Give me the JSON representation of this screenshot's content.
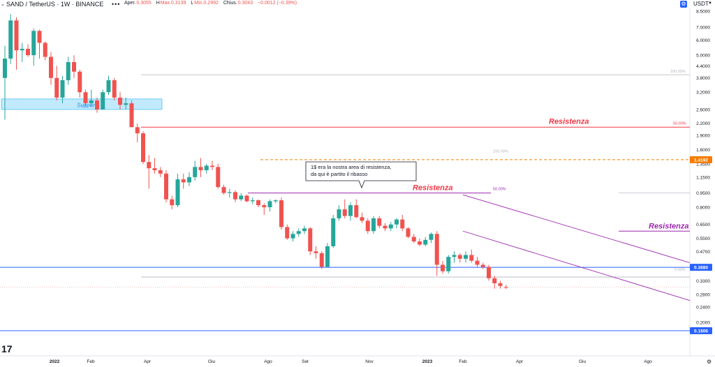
{
  "header": {
    "collapse_icon": "chevron-down",
    "symbol": "SAND / TetherUS · 1W · BINANCE",
    "ohlc": [
      {
        "label": "Aper.",
        "value": "0.3055"
      },
      {
        "label": "H",
        "value": "Max.0.3139"
      },
      {
        "label": "L",
        "value": "Min.0.2992"
      },
      {
        "label": "Chius.",
        "value": "0.3043"
      },
      {
        "label": "",
        "value": "−0.0012 (−0.39%)"
      }
    ],
    "currency": "USDT",
    "settings_icon": "gear-icon"
  },
  "colors": {
    "up": "#26a69a",
    "down": "#ef5350",
    "support": "#b3e5fc",
    "resistance_red": "#f23645",
    "purple": "#9c27b0",
    "blue_line": "#2962ff"
  },
  "chart_data": {
    "type": "candlestick",
    "title": "SAND / TetherUS · 1W · BINANCE",
    "y_scale": "log",
    "ylim": [
      0.19,
      8.5
    ],
    "y_ticks": [
      "8.5000",
      "7.0000",
      "6.0000",
      "5.0000",
      "4.4000",
      "3.8000",
      "3.2000",
      "2.6000",
      "2.2000",
      "1.9000",
      "1.6000",
      "1.3500",
      "1.1500",
      "0.9500",
      "0.8000",
      "0.6500",
      "0.5500",
      "0.4700",
      "0.3950",
      "0.3300",
      "0.2800",
      "0.2400",
      "0.2000"
    ],
    "x_ticks": [
      "2022",
      "Feb",
      "Apr",
      "Giu",
      "Ago",
      "Set",
      "Nov",
      "2023",
      "Feb",
      "Apr",
      "Giu",
      "Ago"
    ],
    "price_labels": [
      {
        "value": "1.4192",
        "color": "#f57c00"
      },
      {
        "value": "0.3880",
        "color": "#2962ff"
      },
      {
        "value": "0.1806",
        "color": "#2962ff"
      }
    ],
    "candles": [
      [
        3.8,
        5.6,
        2.3,
        4.8
      ],
      [
        4.8,
        8.2,
        4.5,
        7.6
      ],
      [
        7.6,
        7.9,
        4.2,
        5.3
      ],
      [
        5.3,
        5.8,
        4.6,
        5.4
      ],
      [
        5.4,
        5.7,
        4.9,
        5.0
      ],
      [
        5.0,
        6.9,
        4.4,
        6.7
      ],
      [
        6.7,
        6.8,
        4.8,
        5.8
      ],
      [
        5.8,
        5.9,
        4.7,
        4.9
      ],
      [
        4.9,
        5.2,
        3.5,
        3.8
      ],
      [
        3.8,
        4.4,
        2.9,
        3.0
      ],
      [
        3.0,
        3.9,
        2.8,
        3.7
      ],
      [
        3.7,
        4.9,
        3.5,
        4.6
      ],
      [
        4.6,
        5.0,
        3.8,
        4.1
      ],
      [
        4.1,
        4.2,
        3.0,
        3.2
      ],
      [
        3.2,
        3.3,
        2.7,
        2.8
      ],
      [
        2.8,
        3.3,
        2.7,
        2.9
      ],
      [
        2.9,
        3.0,
        2.5,
        2.6
      ],
      [
        2.6,
        3.3,
        2.6,
        3.2
      ],
      [
        3.2,
        3.9,
        3.1,
        3.7
      ],
      [
        3.7,
        3.8,
        2.9,
        3.0
      ],
      [
        3.0,
        3.2,
        2.6,
        2.75
      ],
      [
        2.75,
        3.0,
        2.6,
        2.8
      ],
      [
        2.8,
        2.9,
        2.1,
        2.1
      ],
      [
        2.1,
        2.2,
        1.75,
        1.95
      ],
      [
        1.95,
        2.0,
        1.35,
        1.38
      ],
      [
        1.38,
        1.5,
        1.0,
        1.28
      ],
      [
        1.28,
        1.45,
        1.2,
        1.25
      ],
      [
        1.25,
        1.3,
        1.15,
        1.2
      ],
      [
        1.2,
        1.25,
        0.85,
        0.88
      ],
      [
        0.88,
        0.92,
        0.78,
        0.82
      ],
      [
        0.82,
        1.2,
        0.8,
        1.12
      ],
      [
        1.12,
        1.2,
        1.0,
        1.08
      ],
      [
        1.08,
        1.22,
        1.03,
        1.15
      ],
      [
        1.15,
        1.4,
        1.1,
        1.3
      ],
      [
        1.3,
        1.45,
        1.15,
        1.25
      ],
      [
        1.25,
        1.35,
        1.2,
        1.32
      ],
      [
        1.32,
        1.4,
        1.25,
        1.3
      ],
      [
        1.3,
        1.35,
        1.0,
        1.02
      ],
      [
        1.02,
        1.05,
        0.93,
        0.95
      ],
      [
        0.95,
        1.0,
        0.9,
        0.96
      ],
      [
        0.96,
        0.98,
        0.85,
        0.88
      ],
      [
        0.88,
        0.95,
        0.86,
        0.92
      ],
      [
        0.92,
        0.93,
        0.85,
        0.86
      ],
      [
        0.86,
        0.9,
        0.83,
        0.87
      ],
      [
        0.87,
        0.88,
        0.8,
        0.82
      ],
      [
        0.82,
        0.84,
        0.73,
        0.8
      ],
      [
        0.8,
        0.88,
        0.76,
        0.86
      ],
      [
        0.86,
        0.88,
        0.84,
        0.87
      ],
      [
        0.87,
        0.9,
        0.61,
        0.63
      ],
      [
        0.63,
        0.65,
        0.54,
        0.55
      ],
      [
        0.55,
        0.6,
        0.53,
        0.58
      ],
      [
        0.58,
        0.62,
        0.56,
        0.6
      ],
      [
        0.6,
        0.64,
        0.58,
        0.62
      ],
      [
        0.62,
        0.63,
        0.45,
        0.47
      ],
      [
        0.47,
        0.5,
        0.43,
        0.46
      ],
      [
        0.46,
        0.47,
        0.38,
        0.39
      ],
      [
        0.39,
        0.52,
        0.39,
        0.5
      ],
      [
        0.5,
        0.73,
        0.49,
        0.7
      ],
      [
        0.7,
        0.82,
        0.68,
        0.78
      ],
      [
        0.78,
        0.88,
        0.7,
        0.72
      ],
      [
        0.72,
        0.85,
        0.68,
        0.82
      ],
      [
        0.82,
        0.88,
        0.7,
        0.71
      ],
      [
        0.71,
        0.75,
        0.66,
        0.68
      ],
      [
        0.68,
        0.7,
        0.58,
        0.6
      ],
      [
        0.6,
        0.72,
        0.58,
        0.7
      ],
      [
        0.7,
        0.72,
        0.62,
        0.64
      ],
      [
        0.64,
        0.66,
        0.6,
        0.62
      ],
      [
        0.62,
        0.67,
        0.6,
        0.65
      ],
      [
        0.65,
        0.7,
        0.62,
        0.69
      ],
      [
        0.69,
        0.73,
        0.6,
        0.62
      ],
      [
        0.62,
        0.63,
        0.55,
        0.56
      ],
      [
        0.56,
        0.58,
        0.52,
        0.53
      ],
      [
        0.53,
        0.55,
        0.5,
        0.51
      ],
      [
        0.51,
        0.56,
        0.5,
        0.54
      ],
      [
        0.54,
        0.59,
        0.52,
        0.58
      ],
      [
        0.58,
        0.6,
        0.35,
        0.4
      ],
      [
        0.4,
        0.42,
        0.36,
        0.37
      ],
      [
        0.37,
        0.45,
        0.36,
        0.44
      ],
      [
        0.44,
        0.47,
        0.41,
        0.45
      ],
      [
        0.45,
        0.46,
        0.41,
        0.43
      ],
      [
        0.43,
        0.47,
        0.41,
        0.45
      ],
      [
        0.45,
        0.48,
        0.41,
        0.42
      ],
      [
        0.42,
        0.44,
        0.39,
        0.4
      ],
      [
        0.4,
        0.41,
        0.38,
        0.39
      ],
      [
        0.39,
        0.4,
        0.33,
        0.34
      ],
      [
        0.34,
        0.35,
        0.3,
        0.32
      ],
      [
        0.32,
        0.33,
        0.3,
        0.31
      ],
      [
        0.3055,
        0.3139,
        0.2992,
        0.3043
      ]
    ],
    "annotations": {
      "support_label": "Supporto",
      "resistance_labels": [
        "Resistenza",
        "Resistenza",
        "Resistenza"
      ],
      "fib_labels": [
        "100.00%",
        "50.00%",
        "100.00%",
        "50.00%",
        "0.00%"
      ],
      "callout_text": [
        "1$ era la nostra area di resistenza,",
        "da qui è partito il ribasso"
      ]
    }
  }
}
